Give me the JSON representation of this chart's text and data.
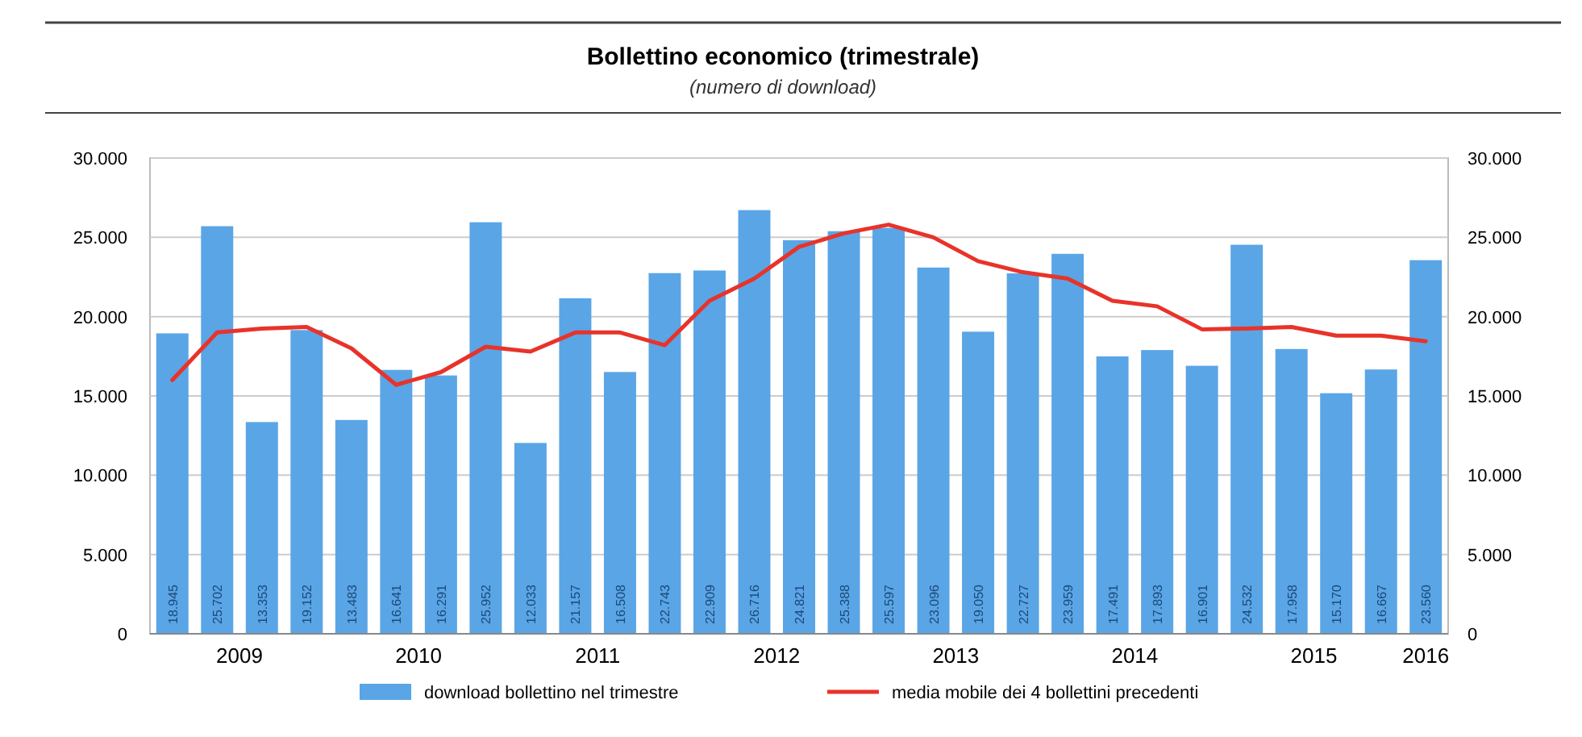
{
  "chart_data": {
    "type": "bar",
    "title": "Bollettino economico (trimestrale)",
    "subtitle": "(numero di download)",
    "x": [
      2009,
      2009.25,
      2009.5,
      2009.75,
      2010,
      2010.25,
      2010.5,
      2010.75,
      2011,
      2011.25,
      2011.5,
      2011.75,
      2012,
      2012.25,
      2012.5,
      2012.75,
      2013,
      2013.25,
      2013.5,
      2013.75,
      2014,
      2014.25,
      2014.5,
      2014.75,
      2015,
      2015.25,
      2015.5,
      2015.75,
      2016
    ],
    "xlim": [
      2008.875,
      2016.125
    ],
    "xticks": [
      {
        "value": 2009.375,
        "label": "2009"
      },
      {
        "value": 2010.375,
        "label": "2010"
      },
      {
        "value": 2011.375,
        "label": "2011"
      },
      {
        "value": 2012.375,
        "label": "2012"
      },
      {
        "value": 2013.375,
        "label": "2013"
      },
      {
        "value": 2014.375,
        "label": "2014"
      },
      {
        "value": 2015.375,
        "label": "2015"
      },
      {
        "value": 2016,
        "label": "2016"
      }
    ],
    "series": [
      {
        "name": "download bollettino nel trimestre",
        "color": "#5aa5e6",
        "values": [
          18945,
          25702,
          13353,
          19152,
          13483,
          16641,
          16291,
          25952,
          12033,
          21157,
          16508,
          22743,
          22909,
          26716,
          24821,
          25388,
          25597,
          23096,
          19050,
          22727,
          23959,
          17491,
          17893,
          16901,
          24532,
          17958,
          15170,
          16667,
          23560
        ],
        "value_labels": [
          "18.945",
          "25.702",
          "13.353",
          "19.152",
          "13.483",
          "16.641",
          "16.291",
          "25.952",
          "12.033",
          "21.157",
          "16.508",
          "22.743",
          "22.909",
          "26.716",
          "24.821",
          "25.388",
          "25.597",
          "23.096",
          "19.050",
          "22.727",
          "23.959",
          "17.491",
          "17.893",
          "16.901",
          "24.532",
          "17.958",
          "15.170",
          "16.667",
          "23.560"
        ]
      },
      {
        "name": "media mobile dei 4 bollettini precedenti",
        "type": "line",
        "color": "#e8332a",
        "values": [
          16000,
          19000,
          19250,
          19350,
          18000,
          15700,
          16500,
          18100,
          17800,
          19000,
          19000,
          18200,
          21000,
          22400,
          24400,
          25250,
          25800,
          25000,
          23500,
          22800,
          22400,
          21000,
          20650,
          19200,
          19250,
          19350,
          18800,
          18800,
          18450
        ]
      }
    ],
    "ylim": [
      0,
      30000
    ],
    "yticks": [
      0,
      {
        "value": 5000,
        "label": "5.000"
      },
      {
        "value": 10000,
        "label": "10.000"
      },
      {
        "value": 15000,
        "label": "15.000"
      },
      {
        "value": 20000,
        "label": "20.000"
      },
      {
        "value": 25000,
        "label": "25.000"
      },
      {
        "value": 30000,
        "label": "30.000"
      }
    ],
    "y2lim": [
      0,
      30000
    ],
    "y2ticks": [
      0,
      {
        "value": 5000,
        "label": "5.000"
      },
      {
        "value": 10000,
        "label": "10.000"
      },
      {
        "value": 15000,
        "label": "15.000"
      },
      {
        "value": 20000,
        "label": "20.000"
      },
      {
        "value": 25000,
        "label": "25.000"
      },
      {
        "value": 30000,
        "label": "30.000"
      }
    ],
    "grid": "y",
    "legend": "bottom"
  }
}
